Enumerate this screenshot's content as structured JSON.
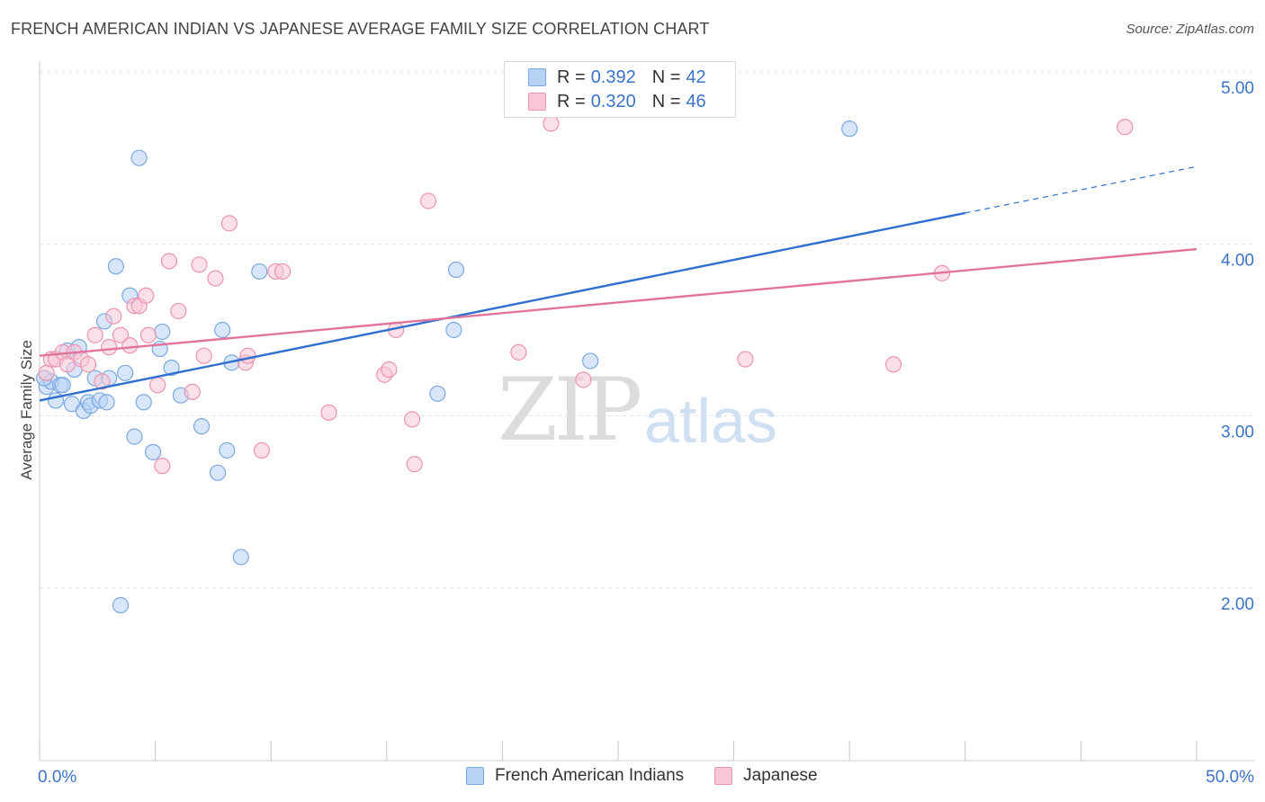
{
  "title": "FRENCH AMERICAN INDIAN VS JAPANESE AVERAGE FAMILY SIZE CORRELATION CHART",
  "source": "Source: ZipAtlas.com",
  "watermark": {
    "part1": "ZIP",
    "part2": "atlas"
  },
  "legend": {
    "r_label": "R =",
    "n_label": "N =",
    "series": [
      {
        "r": "0.392",
        "n": "42",
        "color": "#b7d2f5",
        "border": "#7ba8e0"
      },
      {
        "r": "0.320",
        "n": "46",
        "color": "#f8c6d6",
        "border": "#ec93b0"
      }
    ]
  },
  "bottom_legend": [
    "French American Indians",
    "Japanese"
  ],
  "chart_data": {
    "type": "scatter",
    "xlabel": "",
    "ylabel": "Average Family Size",
    "xlim": [
      0,
      50
    ],
    "ylim": [
      1.0,
      5.2
    ],
    "x_tick_labels": {
      "min": "0.0%",
      "max": "50.0%"
    },
    "y_ticks": [
      2.0,
      3.0,
      4.0,
      5.0
    ],
    "y_tick_labels": [
      "2.00",
      "3.00",
      "4.00",
      "5.00"
    ],
    "grid": true,
    "series": [
      {
        "name": "French American Indians",
        "color": "#7ba8e0",
        "fill": "#b7d2f5",
        "line_color": "#2e6fd0",
        "trend": {
          "x0": 0,
          "y0": 3.09,
          "x1": 40,
          "y1": 4.18,
          "dash_to": 50,
          "dash_y": 4.45
        },
        "points": [
          [
            0.3,
            3.17
          ],
          [
            0.5,
            3.2
          ],
          [
            0.7,
            3.09
          ],
          [
            0.9,
            3.18
          ],
          [
            1.0,
            3.18
          ],
          [
            1.2,
            3.38
          ],
          [
            1.4,
            3.07
          ],
          [
            1.5,
            3.27
          ],
          [
            1.7,
            3.4
          ],
          [
            1.9,
            3.03
          ],
          [
            2.1,
            3.08
          ],
          [
            2.2,
            3.06
          ],
          [
            2.4,
            3.22
          ],
          [
            2.6,
            3.09
          ],
          [
            2.8,
            3.55
          ],
          [
            2.9,
            3.08
          ],
          [
            3.0,
            3.22
          ],
          [
            3.3,
            3.87
          ],
          [
            3.5,
            1.9
          ],
          [
            3.7,
            3.25
          ],
          [
            3.9,
            3.7
          ],
          [
            4.1,
            2.88
          ],
          [
            4.3,
            4.5
          ],
          [
            4.5,
            3.08
          ],
          [
            4.9,
            2.79
          ],
          [
            5.2,
            3.39
          ],
          [
            5.3,
            3.49
          ],
          [
            5.7,
            3.28
          ],
          [
            6.1,
            3.12
          ],
          [
            7.0,
            2.94
          ],
          [
            7.7,
            2.67
          ],
          [
            7.9,
            3.5
          ],
          [
            8.1,
            2.8
          ],
          [
            8.3,
            3.31
          ],
          [
            8.7,
            2.18
          ],
          [
            9.5,
            3.84
          ],
          [
            17.2,
            3.13
          ],
          [
            17.9,
            3.5
          ],
          [
            18.0,
            3.85
          ],
          [
            23.8,
            3.32
          ],
          [
            35.0,
            4.67
          ],
          [
            0.2,
            3.22
          ]
        ]
      },
      {
        "name": "Japanese",
        "color": "#ec93b0",
        "fill": "#f8c6d6",
        "line_color": "#e2739b",
        "trend": {
          "x0": 0,
          "y0": 3.35,
          "x1": 50,
          "y1": 3.97
        },
        "points": [
          [
            0.3,
            3.25
          ],
          [
            0.5,
            3.33
          ],
          [
            0.7,
            3.33
          ],
          [
            1.0,
            3.37
          ],
          [
            1.2,
            3.3
          ],
          [
            1.5,
            3.37
          ],
          [
            1.8,
            3.33
          ],
          [
            2.1,
            3.3
          ],
          [
            2.4,
            3.47
          ],
          [
            2.7,
            3.2
          ],
          [
            3.0,
            3.4
          ],
          [
            3.2,
            3.58
          ],
          [
            3.5,
            3.47
          ],
          [
            3.9,
            3.41
          ],
          [
            4.1,
            3.64
          ],
          [
            4.3,
            3.64
          ],
          [
            4.6,
            3.7
          ],
          [
            4.7,
            3.47
          ],
          [
            5.1,
            3.18
          ],
          [
            5.3,
            2.71
          ],
          [
            5.6,
            3.9
          ],
          [
            6.0,
            3.61
          ],
          [
            6.6,
            3.14
          ],
          [
            6.9,
            3.88
          ],
          [
            7.1,
            3.35
          ],
          [
            7.6,
            3.8
          ],
          [
            8.2,
            4.12
          ],
          [
            8.9,
            3.31
          ],
          [
            9.0,
            3.35
          ],
          [
            9.6,
            2.8
          ],
          [
            10.2,
            3.84
          ],
          [
            10.5,
            3.84
          ],
          [
            12.5,
            3.02
          ],
          [
            14.9,
            3.24
          ],
          [
            15.1,
            3.27
          ],
          [
            15.4,
            3.5
          ],
          [
            16.1,
            2.98
          ],
          [
            16.2,
            2.72
          ],
          [
            16.8,
            4.25
          ],
          [
            20.7,
            3.37
          ],
          [
            22.1,
            4.7
          ],
          [
            23.5,
            3.21
          ],
          [
            30.5,
            3.33
          ],
          [
            36.9,
            3.3
          ],
          [
            39.0,
            3.83
          ],
          [
            46.9,
            4.68
          ]
        ]
      }
    ]
  }
}
